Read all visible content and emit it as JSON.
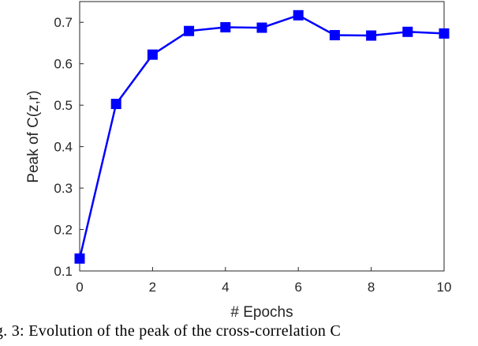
{
  "chart_data": {
    "type": "line",
    "title": "",
    "xlabel": "# Epochs",
    "ylabel": "Peak of C(z,r)",
    "xlim": [
      0,
      10
    ],
    "ylim": [
      0.1,
      0.75
    ],
    "x_ticks": [
      "0",
      "2",
      "4",
      "6",
      "8",
      "10"
    ],
    "y_ticks": [
      "0.1",
      "0.2",
      "0.3",
      "0.4",
      "0.5",
      "0.6",
      "0.7"
    ],
    "grid": false,
    "series": [
      {
        "marker": "square",
        "color": "#0000ff",
        "x": [
          0,
          1,
          2,
          3,
          4,
          5,
          6,
          7,
          8,
          9,
          10
        ],
        "y": [
          0.13,
          0.503,
          0.622,
          0.679,
          0.688,
          0.687,
          0.717,
          0.669,
          0.668,
          0.677,
          0.673
        ]
      }
    ]
  },
  "caption": "ig. 3: Evolution of the peak of the cross-correlation C"
}
